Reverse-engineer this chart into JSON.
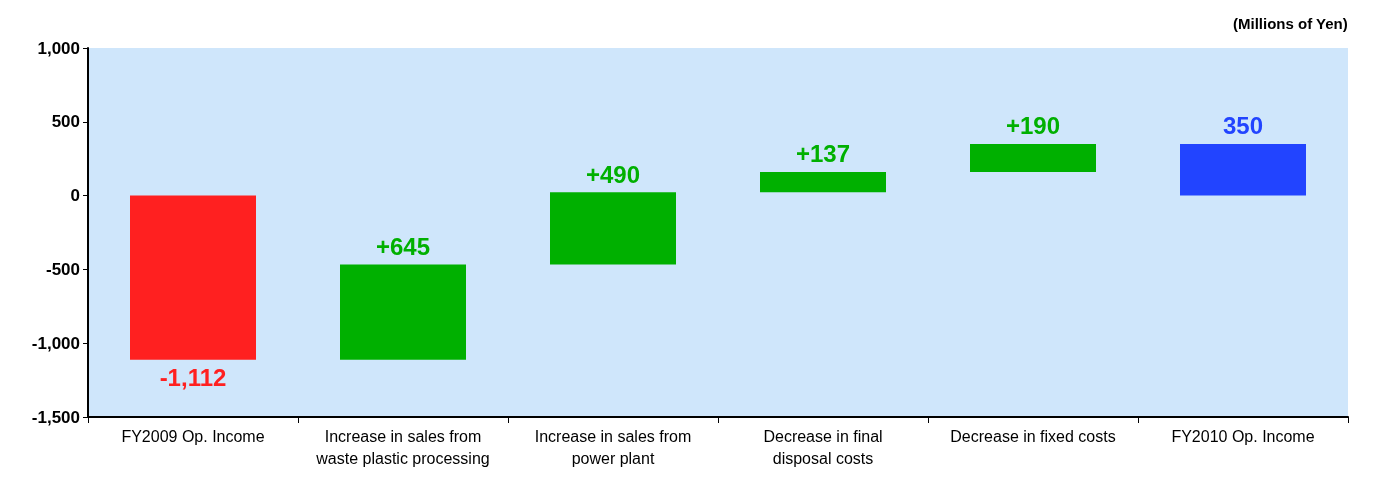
{
  "chart_data": {
    "type": "bar",
    "ylabel": "(Millions of Yen)",
    "categories": [
      "FY2009 Op. Income",
      "Increase in sales from waste plastic processing",
      "Increase in sales from power plant",
      "Decrease in final disposal costs",
      "Decrease in fixed costs",
      "FY2010 Op. Income"
    ],
    "values": [
      -1112,
      645,
      490,
      137,
      190,
      350
    ],
    "base": [
      0,
      -1112,
      -467,
      23,
      160,
      0
    ],
    "colors": [
      "#ff2020",
      "#00b000",
      "#00b000",
      "#00b000",
      "#00b000",
      "#2244ff"
    ],
    "value_labels": [
      "-1,112",
      "+645",
      "+490",
      "+137",
      "+190",
      "350"
    ],
    "ylim": [
      -1500,
      1000
    ],
    "yticks": [
      {
        "value": -1500,
        "label": "-1,500"
      },
      {
        "value": -1000,
        "label": "-1,000"
      },
      -500,
      0,
      500,
      {
        "value": 1000,
        "label": "1,000"
      }
    ],
    "grid": false
  }
}
